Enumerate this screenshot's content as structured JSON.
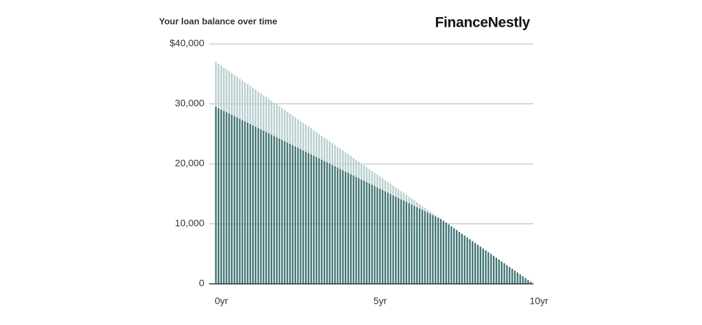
{
  "chart_data": {
    "type": "stacked_bar",
    "title": "Your loan balance over time",
    "brand": "FinanceNestly",
    "categories": [
      "0yr",
      null,
      null,
      null,
      null,
      null,
      null,
      null,
      null,
      null,
      null,
      null,
      null,
      null,
      null,
      null,
      null,
      null,
      null,
      null,
      null,
      null,
      null,
      null,
      null,
      null,
      null,
      null,
      null,
      null,
      null,
      null,
      null,
      null,
      null,
      null,
      null,
      null,
      null,
      null,
      null,
      null,
      null,
      null,
      null,
      null,
      null,
      null,
      null,
      null,
      null,
      null,
      null,
      null,
      null,
      null,
      null,
      null,
      null,
      null,
      "5yr",
      null,
      null,
      null,
      null,
      null,
      null,
      null,
      null,
      null,
      null,
      null,
      null,
      null,
      null,
      null,
      null,
      null,
      null,
      null,
      null,
      null,
      null,
      null,
      null,
      null,
      null,
      null,
      null,
      null,
      null,
      null,
      null,
      null,
      null,
      null,
      null,
      null,
      null,
      null,
      null,
      null,
      null,
      null,
      null,
      null,
      null,
      null,
      null,
      null,
      null,
      null,
      null,
      null,
      null,
      null,
      null,
      null,
      null,
      null,
      "10yr"
    ],
    "series": [
      {
        "color": "#3f7474",
        "values": [
          29500,
          29280,
          29060,
          28840,
          28620,
          28400,
          28180,
          27960,
          27740,
          27520,
          27300,
          27080,
          26860,
          26640,
          26420,
          26200,
          25980,
          25760,
          25540,
          25320,
          25100,
          24880,
          24660,
          24440,
          24220,
          24000,
          23780,
          23560,
          23340,
          23120,
          22900,
          22680,
          22460,
          22240,
          22020,
          21800,
          21580,
          21360,
          21140,
          20920,
          20700,
          20480,
          20260,
          20040,
          19820,
          19600,
          19380,
          19160,
          18940,
          18720,
          18500,
          18280,
          18060,
          17840,
          17620,
          17400,
          17180,
          16960,
          16740,
          16520,
          16300,
          16080,
          15860,
          15640,
          15420,
          15200,
          14980,
          14760,
          14540,
          14320,
          14100,
          13880,
          13660,
          13440,
          13220,
          13000,
          12780,
          12560,
          12340,
          12120,
          11900,
          11680,
          11460,
          11240,
          11020,
          10800,
          10512,
          10204,
          9896,
          9588,
          9280,
          8972,
          8664,
          8356,
          8048,
          7740,
          7432,
          7124,
          6816,
          6508,
          6200,
          5892,
          5584,
          5276,
          4968,
          4660,
          4352,
          4044,
          3736,
          3428,
          3120,
          2812,
          2504,
          2196,
          1888,
          1580,
          1272,
          964,
          656,
          348,
          40
        ]
      },
      {
        "color": "#b8cece",
        "values": [
          7500,
          7412,
          7324,
          7236,
          7148,
          7060,
          6972,
          6884,
          6796,
          6708,
          6620,
          6532,
          6444,
          6356,
          6268,
          6180,
          6092,
          6004,
          5916,
          5828,
          5740,
          5652,
          5564,
          5476,
          5388,
          5300,
          5212,
          5124,
          5036,
          4948,
          4860,
          4772,
          4684,
          4596,
          4508,
          4420,
          4332,
          4244,
          4156,
          4068,
          3980,
          3892,
          3804,
          3716,
          3628,
          3540,
          3452,
          3364,
          3276,
          3188,
          3100,
          3012,
          2924,
          2836,
          2748,
          2660,
          2572,
          2484,
          2396,
          2308,
          2220,
          2132,
          2044,
          1956,
          1868,
          1780,
          1692,
          1604,
          1516,
          1428,
          1340,
          1252,
          1164,
          1076,
          988,
          900,
          812,
          724,
          636,
          548,
          460,
          372,
          284,
          196,
          108,
          20,
          0,
          0,
          0,
          0,
          0,
          0,
          0,
          0,
          0,
          0,
          0,
          0,
          0,
          0,
          0,
          0,
          0,
          0,
          0,
          0,
          0,
          0,
          0,
          0,
          0,
          0,
          0,
          0,
          0,
          0,
          0,
          0,
          0,
          0,
          0
        ]
      }
    ],
    "ylim": [
      0,
      40000
    ],
    "yticks": [
      0,
      {
        "value": 10000,
        "label": "10,000"
      },
      {
        "value": 20000,
        "label": "20,000"
      },
      {
        "value": 30000,
        "label": "30,000"
      },
      {
        "value": 40000,
        "label": "$40,000"
      }
    ],
    "grid": true
  }
}
